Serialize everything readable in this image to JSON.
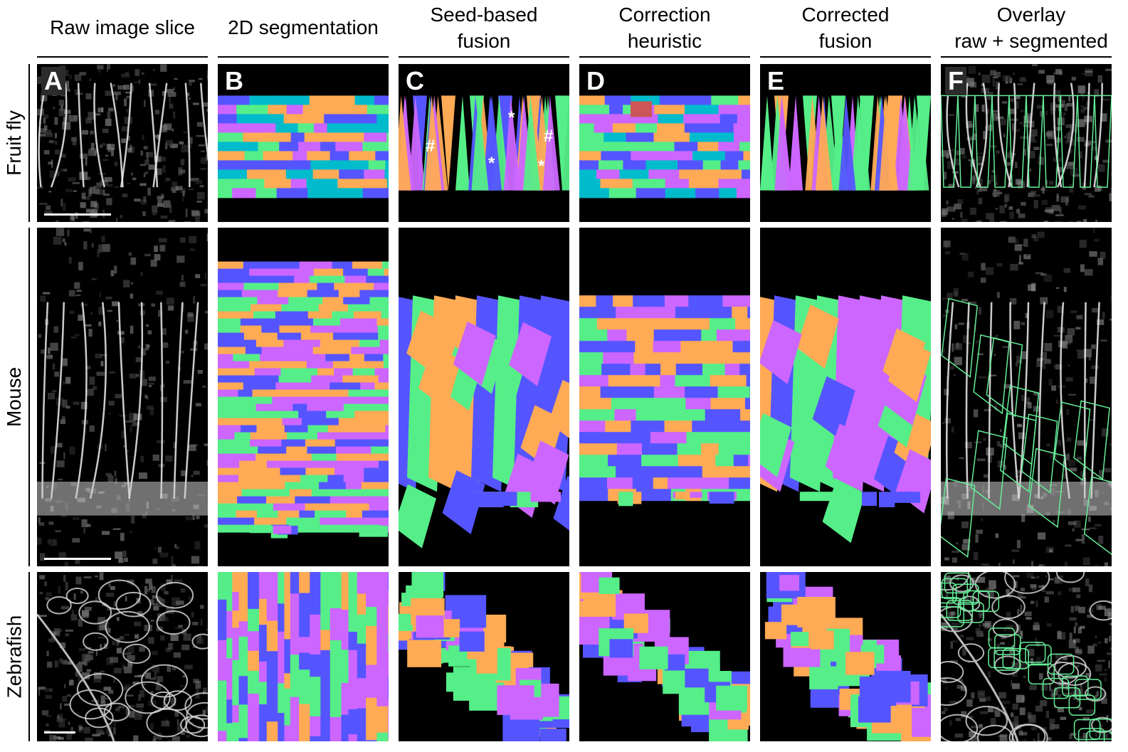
{
  "columns": [
    {
      "line1": "Raw image slice",
      "line2": ""
    },
    {
      "line1": "2D segmentation",
      "line2": ""
    },
    {
      "line1": "Seed-based",
      "line2": "fusion"
    },
    {
      "line1": "Correction",
      "line2": "heuristic"
    },
    {
      "line1": "Corrected",
      "line2": "fusion"
    },
    {
      "line1": "Overlay",
      "line2": "raw + segmented"
    }
  ],
  "rows": [
    {
      "label": "Fruit fly"
    },
    {
      "label": "Mouse"
    },
    {
      "label": "Zebrafish"
    }
  ],
  "panel_letters": [
    "A",
    "B",
    "C",
    "D",
    "E",
    "F"
  ],
  "annotations": {
    "hash": "#",
    "star": "*"
  },
  "colors": {
    "purple": "#cc66ff",
    "green": "#55ee88",
    "blue": "#5555ff",
    "orange": "#ffaa55",
    "cyan": "#00bbcc",
    "red": "#cc5555",
    "background": "#000000",
    "overlay_outline": "#66ee99"
  },
  "panel_types": {
    "raw": "grayscale microscopy",
    "segmentation": "colored label map",
    "overlay": "grayscale with green outlines"
  }
}
